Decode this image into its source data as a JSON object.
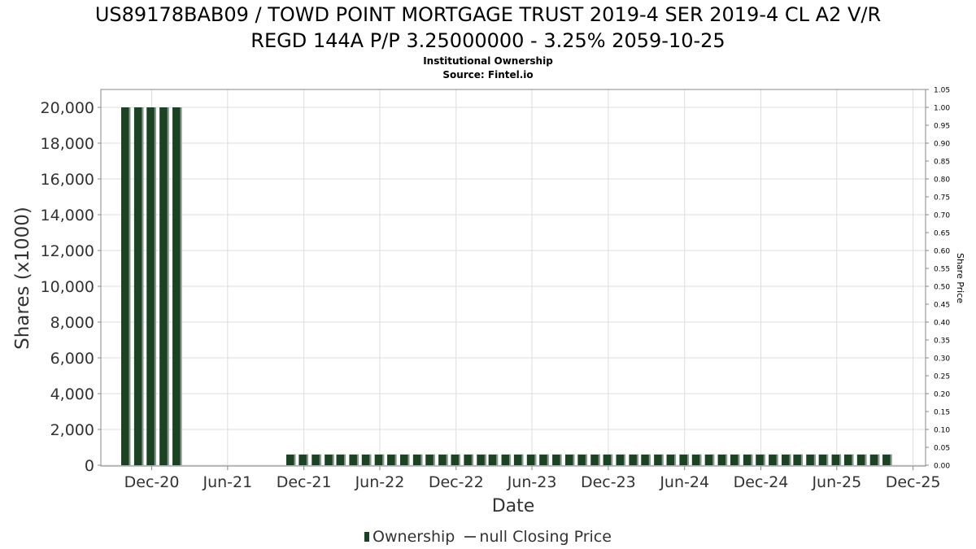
{
  "title_line1": "US89178BAB09 / TOWD POINT MORTGAGE TRUST 2019-4 SER 2019-4 CL A2 V/R",
  "title_line2": "REGD 144A P/P 3.25000000 - 3.25% 2059-10-25",
  "subtitle_line1": "Institutional Ownership",
  "subtitle_line2": "Source: Fintel.io",
  "legend": {
    "ownership_label": "Ownership",
    "price_label": "null Closing Price"
  },
  "colors": {
    "bar_fill": "#1a4223",
    "bar_edge": "#8a9a8d",
    "grid": "#dddddd",
    "axis": "#888888",
    "price_line": "#555555"
  },
  "chart_data": {
    "type": "bar",
    "xlabel": "Date",
    "ylabel": "Shares (x1000)",
    "y2label": "Share Price",
    "x_range": [
      "2020-08-01",
      "2025-12-31"
    ],
    "ylim": [
      0,
      20000
    ],
    "y2lim": [
      0.0,
      1.05
    ],
    "x_ticks": [
      {
        "label": "Dec-20",
        "date": "2020-12-01"
      },
      {
        "label": "Jun-21",
        "date": "2021-06-01"
      },
      {
        "label": "Dec-21",
        "date": "2021-12-01"
      },
      {
        "label": "Jun-22",
        "date": "2022-06-01"
      },
      {
        "label": "Dec-22",
        "date": "2022-12-01"
      },
      {
        "label": "Jun-23",
        "date": "2023-06-01"
      },
      {
        "label": "Dec-23",
        "date": "2023-12-01"
      },
      {
        "label": "Jun-24",
        "date": "2024-06-01"
      },
      {
        "label": "Dec-24",
        "date": "2024-12-01"
      },
      {
        "label": "Jun-25",
        "date": "2025-06-01"
      },
      {
        "label": "Dec-25",
        "date": "2025-12-01"
      }
    ],
    "y_ticks": [
      "0",
      "2,000",
      "4,000",
      "6,000",
      "8,000",
      "10,000",
      "12,000",
      "14,000",
      "16,000",
      "18,000",
      "20,000"
    ],
    "y2_ticks": [
      "0.00",
      "0.05",
      "0.10",
      "0.15",
      "0.20",
      "0.25",
      "0.30",
      "0.35",
      "0.40",
      "0.45",
      "0.50",
      "0.55",
      "0.60",
      "0.65",
      "0.70",
      "0.75",
      "0.80",
      "0.85",
      "0.90",
      "0.95",
      "1.00",
      "1.05"
    ],
    "grid": true,
    "legend_position": "bottom",
    "series": [
      {
        "name": "Ownership",
        "points": [
          {
            "date": "2020-09-30",
            "value": 20000
          },
          {
            "date": "2020-10-31",
            "value": 20000
          },
          {
            "date": "2020-11-30",
            "value": 20000
          },
          {
            "date": "2020-12-31",
            "value": 20000
          },
          {
            "date": "2021-01-31",
            "value": 20000
          },
          {
            "date": "2021-10-31",
            "value": 600
          },
          {
            "date": "2021-11-30",
            "value": 600
          },
          {
            "date": "2021-12-31",
            "value": 600
          },
          {
            "date": "2022-01-31",
            "value": 600
          },
          {
            "date": "2022-02-28",
            "value": 600
          },
          {
            "date": "2022-03-31",
            "value": 600
          },
          {
            "date": "2022-04-30",
            "value": 600
          },
          {
            "date": "2022-05-31",
            "value": 600
          },
          {
            "date": "2022-06-30",
            "value": 600
          },
          {
            "date": "2022-07-31",
            "value": 600
          },
          {
            "date": "2022-08-31",
            "value": 600
          },
          {
            "date": "2022-09-30",
            "value": 600
          },
          {
            "date": "2022-10-31",
            "value": 600
          },
          {
            "date": "2022-11-30",
            "value": 600
          },
          {
            "date": "2022-12-31",
            "value": 600
          },
          {
            "date": "2023-01-31",
            "value": 600
          },
          {
            "date": "2023-02-28",
            "value": 600
          },
          {
            "date": "2023-03-31",
            "value": 600
          },
          {
            "date": "2023-04-30",
            "value": 600
          },
          {
            "date": "2023-05-31",
            "value": 600
          },
          {
            "date": "2023-06-30",
            "value": 600
          },
          {
            "date": "2023-07-31",
            "value": 600
          },
          {
            "date": "2023-08-31",
            "value": 600
          },
          {
            "date": "2023-09-30",
            "value": 600
          },
          {
            "date": "2023-10-31",
            "value": 600
          },
          {
            "date": "2023-11-30",
            "value": 600
          },
          {
            "date": "2023-12-31",
            "value": 600
          },
          {
            "date": "2024-01-31",
            "value": 600
          },
          {
            "date": "2024-02-29",
            "value": 600
          },
          {
            "date": "2024-03-31",
            "value": 600
          },
          {
            "date": "2024-04-30",
            "value": 600
          },
          {
            "date": "2024-05-31",
            "value": 600
          },
          {
            "date": "2024-06-30",
            "value": 600
          },
          {
            "date": "2024-07-31",
            "value": 600
          },
          {
            "date": "2024-08-31",
            "value": 600
          },
          {
            "date": "2024-09-30",
            "value": 600
          },
          {
            "date": "2024-10-31",
            "value": 600
          },
          {
            "date": "2024-11-30",
            "value": 600
          },
          {
            "date": "2024-12-31",
            "value": 600
          },
          {
            "date": "2025-01-31",
            "value": 600
          },
          {
            "date": "2025-02-28",
            "value": 600
          },
          {
            "date": "2025-03-31",
            "value": 600
          },
          {
            "date": "2025-04-30",
            "value": 600
          },
          {
            "date": "2025-05-31",
            "value": 600
          },
          {
            "date": "2025-06-30",
            "value": 600
          },
          {
            "date": "2025-07-31",
            "value": 600
          },
          {
            "date": "2025-08-31",
            "value": 600
          },
          {
            "date": "2025-09-30",
            "value": 600
          }
        ]
      },
      {
        "name": "null Closing Price",
        "points": []
      }
    ]
  }
}
